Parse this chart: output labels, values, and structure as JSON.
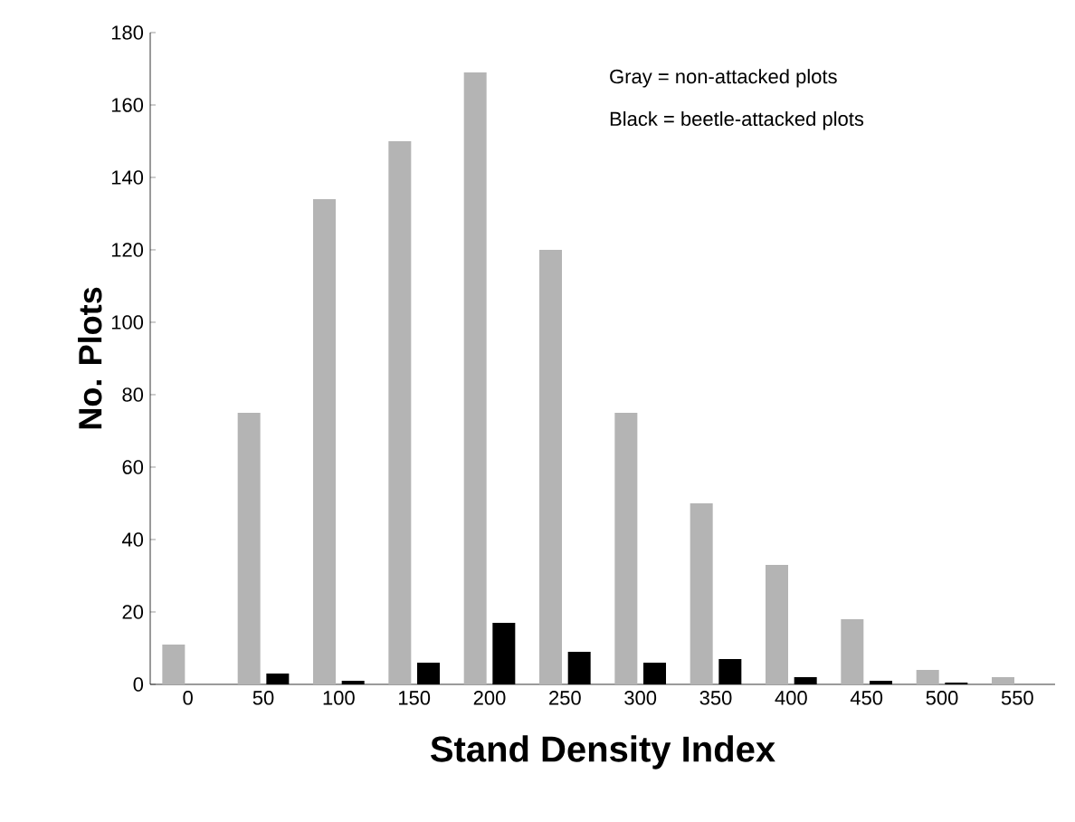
{
  "chart_data": {
    "type": "bar",
    "xlabel": "Stand Density Index",
    "ylabel": "No. Plots",
    "categories": [
      "0",
      "50",
      "100",
      "150",
      "200",
      "250",
      "300",
      "350",
      "400",
      "450",
      "500",
      "550"
    ],
    "series": [
      {
        "color": "#b4b4b4",
        "values": [
          11,
          75,
          134,
          150,
          169,
          120,
          75,
          50,
          33,
          18,
          4,
          2
        ]
      },
      {
        "color": "#000000",
        "values": [
          0,
          3,
          1,
          6,
          17,
          9,
          6,
          7,
          2,
          1,
          0.5,
          0
        ]
      }
    ],
    "ylim": [
      0,
      180
    ],
    "yticks": [
      0,
      20,
      40,
      60,
      80,
      100,
      120,
      140,
      160,
      180
    ],
    "annotations": [
      "Gray  =  non-attacked plots",
      "Black  =  beetle-attacked plots"
    ]
  }
}
